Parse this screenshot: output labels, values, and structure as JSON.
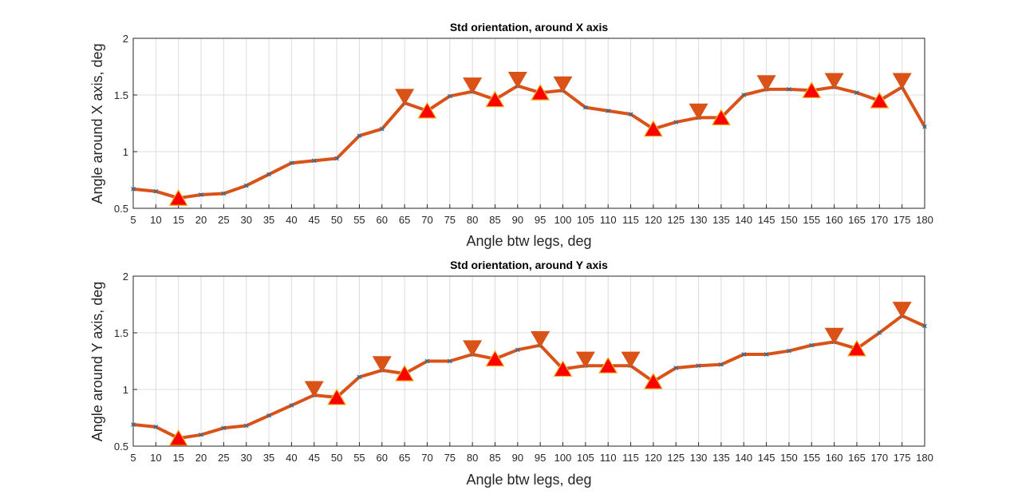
{
  "chart_data": [
    {
      "type": "line",
      "title": "Std orientation, around X axis",
      "xlabel": "Angle btw legs, deg",
      "ylabel": "Angle around X axis, deg",
      "xlim": [
        5,
        180
      ],
      "ylim": [
        0.5,
        2
      ],
      "grid": true,
      "xticks": [
        5,
        10,
        15,
        20,
        25,
        30,
        35,
        40,
        45,
        50,
        55,
        60,
        65,
        70,
        75,
        80,
        85,
        90,
        95,
        100,
        105,
        110,
        115,
        120,
        125,
        130,
        135,
        140,
        145,
        150,
        155,
        160,
        165,
        170,
        175,
        180
      ],
      "yticks": [
        0.5,
        1,
        1.5,
        2
      ],
      "ytick_labels": [
        "0.5",
        "1",
        "1.5",
        "2"
      ],
      "x": [
        5,
        10,
        15,
        20,
        25,
        30,
        35,
        40,
        45,
        50,
        55,
        60,
        65,
        70,
        75,
        80,
        85,
        90,
        95,
        100,
        105,
        110,
        115,
        120,
        125,
        130,
        135,
        140,
        145,
        150,
        155,
        160,
        165,
        170,
        175,
        180
      ],
      "y": [
        0.67,
        0.65,
        0.59,
        0.62,
        0.63,
        0.7,
        0.8,
        0.9,
        0.92,
        0.94,
        1.14,
        1.2,
        1.43,
        1.36,
        1.49,
        1.53,
        1.46,
        1.58,
        1.52,
        1.54,
        1.39,
        1.36,
        1.33,
        1.2,
        1.26,
        1.3,
        1.3,
        1.5,
        1.55,
        1.55,
        1.54,
        1.57,
        1.52,
        1.45,
        1.57,
        1.22
      ],
      "peaks_x": [
        65,
        80,
        90,
        100,
        130,
        145,
        160,
        175
      ],
      "troughs_x": [
        15,
        70,
        85,
        95,
        120,
        135,
        155,
        170
      ],
      "colors": {
        "line": "#d95319",
        "marker_fill": "#ff0000",
        "marker_edge": "#edb120",
        "point": "#0072bd"
      }
    },
    {
      "type": "line",
      "title": "Std orientation, around Y axis",
      "xlabel": "Angle btw legs, deg",
      "ylabel": "Angle around Y axis, deg",
      "xlim": [
        5,
        180
      ],
      "ylim": [
        0.5,
        2
      ],
      "grid": true,
      "xticks": [
        5,
        10,
        15,
        20,
        25,
        30,
        35,
        40,
        45,
        50,
        55,
        60,
        65,
        70,
        75,
        80,
        85,
        90,
        95,
        100,
        105,
        110,
        115,
        120,
        125,
        130,
        135,
        140,
        145,
        150,
        155,
        160,
        165,
        170,
        175,
        180
      ],
      "yticks": [
        0.5,
        1,
        1.5,
        2
      ],
      "ytick_labels": [
        "0.5",
        "1",
        "1.5",
        "2"
      ],
      "x": [
        5,
        10,
        15,
        20,
        25,
        30,
        35,
        40,
        45,
        50,
        55,
        60,
        65,
        70,
        75,
        80,
        85,
        90,
        95,
        100,
        105,
        110,
        115,
        120,
        125,
        130,
        135,
        140,
        145,
        150,
        155,
        160,
        165,
        170,
        175,
        180
      ],
      "y": [
        0.69,
        0.67,
        0.57,
        0.6,
        0.66,
        0.68,
        0.77,
        0.86,
        0.95,
        0.93,
        1.11,
        1.17,
        1.14,
        1.25,
        1.25,
        1.31,
        1.27,
        1.35,
        1.39,
        1.18,
        1.21,
        1.21,
        1.21,
        1.07,
        1.19,
        1.21,
        1.22,
        1.31,
        1.31,
        1.34,
        1.39,
        1.42,
        1.36,
        1.5,
        1.65,
        1.56
      ],
      "peaks_x": [
        45,
        60,
        80,
        95,
        105,
        115,
        160,
        175
      ],
      "troughs_x": [
        15,
        50,
        65,
        85,
        100,
        110,
        120,
        165
      ],
      "colors": {
        "line": "#d95319",
        "marker_fill": "#ff0000",
        "marker_edge": "#edb120",
        "point": "#0072bd"
      }
    }
  ]
}
